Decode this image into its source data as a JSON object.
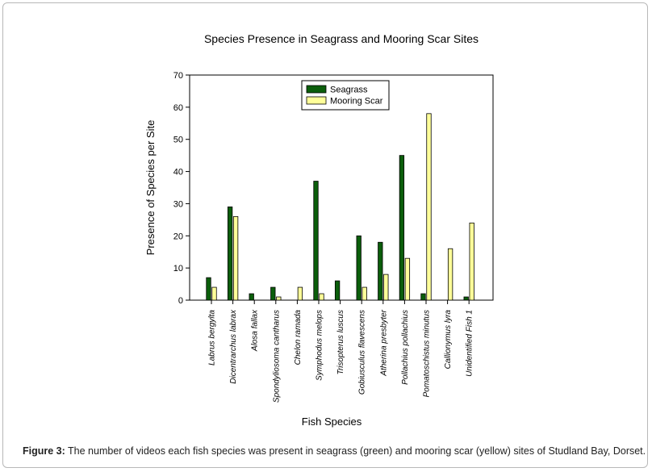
{
  "chart_data": {
    "type": "bar",
    "title": "Species Presence in Seagrass and Mooring Scar Sites",
    "xlabel": "Fish Species",
    "ylabel": "Presence of Species per Site",
    "ylim": [
      0,
      70
    ],
    "yticks": [
      0,
      10,
      20,
      30,
      40,
      50,
      60,
      70
    ],
    "categories": [
      "Labrus bergylta",
      "Dicentrarchus labrax",
      "Alosa fallax",
      "Spondyliosoma cantharus",
      "Chelon ramada",
      "Symphodus melops",
      "Trisopterus luscus",
      "Gobiusculus flavescens",
      "Atherina presbyter",
      "Pollachius pollachius",
      "Pomatoschistus minutus",
      "Callionymus lyra",
      "Unidentified Fish 1"
    ],
    "series": [
      {
        "name": "Seagrass",
        "color": "#0b5e0b",
        "values": [
          7,
          29,
          2,
          4,
          0,
          37,
          6,
          20,
          18,
          45,
          2,
          0,
          1
        ]
      },
      {
        "name": "Mooring Scar",
        "color": "#ffff99",
        "values": [
          4,
          26,
          0,
          1,
          4,
          2,
          0,
          4,
          8,
          13,
          58,
          16,
          24
        ]
      }
    ],
    "legend_position": "top-center",
    "grid": false
  },
  "caption": {
    "label": "Figure 3:",
    "text": " The number of videos each fish species was present in seagrass (green) and mooring scar (yellow) sites of Studland Bay, Dorset."
  }
}
